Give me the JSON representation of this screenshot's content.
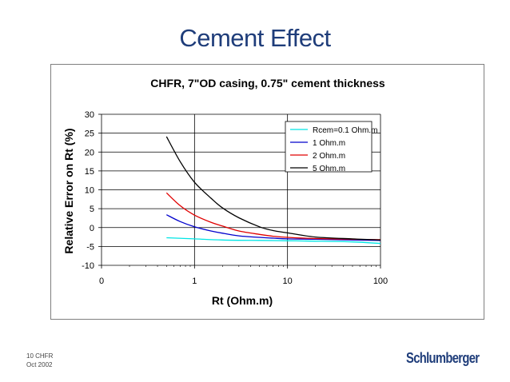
{
  "slide": {
    "title": "Cement Effect",
    "footer_page": "10   CHFR",
    "footer_date": "Oct 2002",
    "logo_text": "Schlumberger"
  },
  "chart_data": {
    "type": "line",
    "title": "CHFR, 7\"OD casing, 0.75\" cement thickness",
    "xlabel": "Rt (Ohm.m)",
    "ylabel": "Relative Error on Rt (%)",
    "x_scale": "log",
    "xlim": [
      0.1,
      100
    ],
    "ylim": [
      -10,
      30
    ],
    "x_ticks": [
      0.1,
      1,
      10,
      100
    ],
    "x_tick_labels": [
      "0",
      "1",
      "10",
      "100"
    ],
    "y_ticks": [
      -10,
      -5,
      0,
      5,
      10,
      15,
      20,
      25,
      30
    ],
    "y_tick_labels": [
      "-10",
      "-5",
      "0",
      "5",
      "10",
      "15",
      "20",
      "25",
      "30"
    ],
    "grid": true,
    "legend_position": "top-right",
    "series": [
      {
        "name": "Rcem=0.1 Ohm.m",
        "color": "#00e5e5",
        "x": [
          0.5,
          1,
          2,
          5,
          10,
          20,
          50,
          100
        ],
        "y": [
          -2.7,
          -3.0,
          -3.3,
          -3.4,
          -3.5,
          -3.6,
          -3.8,
          -4.2
        ]
      },
      {
        "name": "1 Ohm.m",
        "color": "#0000cc",
        "x": [
          0.5,
          0.7,
          1,
          1.5,
          2,
          3,
          5,
          7,
          10,
          20,
          50,
          100
        ],
        "y": [
          3.4,
          1.6,
          0.2,
          -0.9,
          -1.5,
          -2.2,
          -2.6,
          -2.8,
          -3.0,
          -3.1,
          -3.3,
          -3.4
        ]
      },
      {
        "name": "2 Ohm.m",
        "color": "#e00000",
        "x": [
          0.5,
          0.7,
          1,
          1.5,
          2,
          3,
          5,
          7,
          10,
          20,
          50,
          100
        ],
        "y": [
          9.2,
          5.8,
          3.3,
          1.4,
          0.4,
          -0.9,
          -1.8,
          -2.3,
          -2.6,
          -2.9,
          -3.1,
          -3.2
        ]
      },
      {
        "name": "5 Ohm.m",
        "color": "#000000",
        "x": [
          0.5,
          0.7,
          1,
          1.5,
          2,
          3,
          5,
          7,
          10,
          20,
          50,
          100
        ],
        "y": [
          24.1,
          17.5,
          12.0,
          7.8,
          5.2,
          2.6,
          0.2,
          -0.8,
          -1.4,
          -2.5,
          -3.0,
          -3.3
        ]
      }
    ]
  }
}
